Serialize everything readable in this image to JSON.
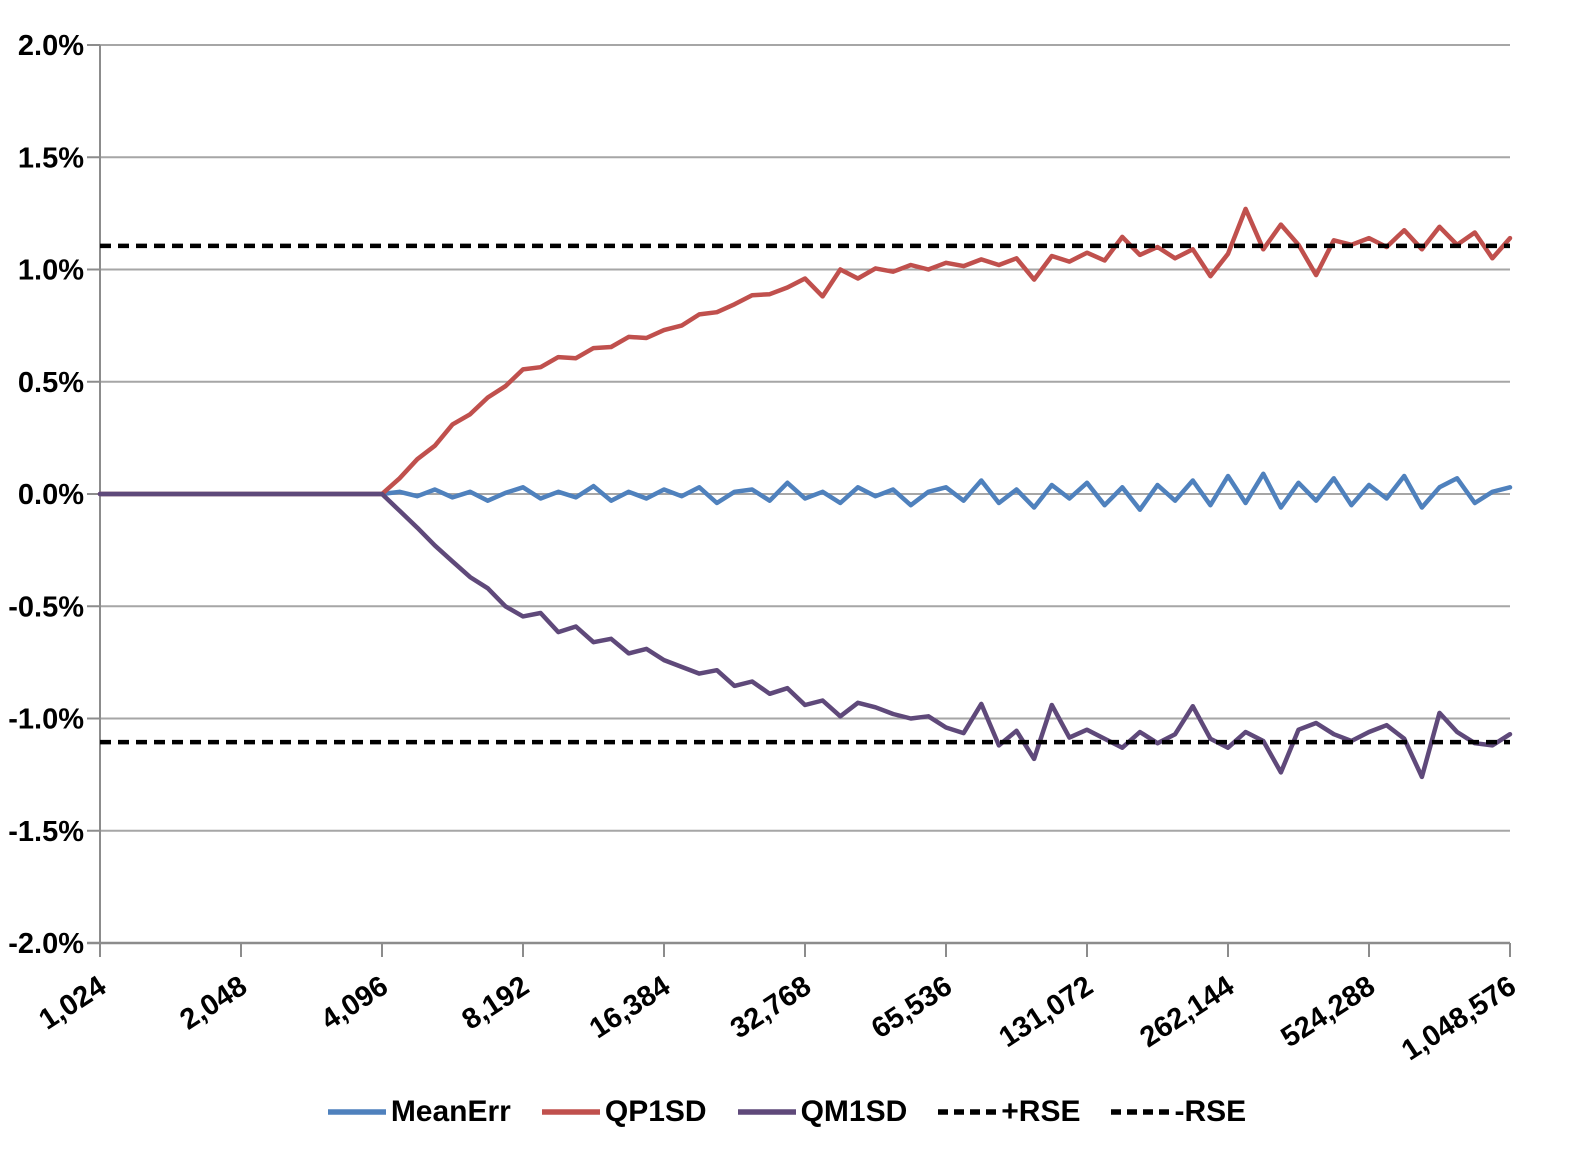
{
  "chart_data": {
    "type": "line",
    "title": "",
    "xlabel": "",
    "ylabel": "",
    "grid": "horizontal-only",
    "background": "#ffffff",
    "x_axis": {
      "scale": "log2",
      "min": 1024,
      "max": 1048576,
      "tick_values": [
        1024,
        2048,
        4096,
        8192,
        16384,
        32768,
        65536,
        131072,
        262144,
        524288,
        1048576
      ],
      "tick_labels": [
        "1,024",
        "2,048",
        "4,096",
        "8,192",
        "16,384",
        "32,768",
        "65,536",
        "131,072",
        "262,144",
        "524,288",
        "1,048,576"
      ],
      "label_rotation_deg": -33
    },
    "y_axis": {
      "min": -2.0,
      "max": 2.0,
      "tick_step": 0.5,
      "unit": "%",
      "tick_values": [
        2.0,
        1.5,
        1.0,
        0.5,
        0.0,
        -0.5,
        -1.0,
        -1.5,
        -2.0
      ],
      "tick_labels": [
        "2.0%",
        "1.5%",
        "1.0%",
        "0.5%",
        "0.0%",
        "-0.5%",
        "-1.0%",
        "-1.5%",
        "-2.0%"
      ]
    },
    "x": [
      1024,
      1117,
      1218,
      1328,
      1448,
      1579,
      1722,
      1878,
      2048,
      2233,
      2435,
      2656,
      2896,
      3158,
      3444,
      3756,
      4096,
      4467,
      4871,
      5312,
      5793,
      6317,
      6889,
      7512,
      8192,
      8933,
      9742,
      10624,
      11585,
      12634,
      13777,
      15024,
      16384,
      17867,
      19484,
      21247,
      23170,
      25268,
      27554,
      30048,
      32768,
      35734,
      38968,
      42495,
      46341,
      50535,
      55109,
      60097,
      65536,
      71468,
      77936,
      84990,
      92682,
      101070,
      110218,
      120194,
      131072,
      142935,
      155872,
      169979,
      185364,
      202141,
      220436,
      240387,
      262144,
      285870,
      311744,
      339959,
      370728,
      404281,
      440872,
      480775,
      524288,
      571740,
      623487,
      679917,
      741455,
      808562,
      881744,
      961551,
      1048576
    ],
    "series": [
      {
        "name": "MeanErr",
        "color": "#4F81BD",
        "style": "solid",
        "values": [
          0,
          0,
          0,
          0,
          0,
          0,
          0,
          0,
          0,
          0,
          0,
          0,
          0,
          0,
          0,
          0,
          0,
          0.01,
          -0.01,
          0.02,
          -0.015,
          0.01,
          -0.03,
          0.005,
          0.03,
          -0.02,
          0.01,
          -0.015,
          0.035,
          -0.03,
          0.01,
          -0.02,
          0.02,
          -0.01,
          0.03,
          -0.04,
          0.01,
          0.02,
          -0.03,
          0.05,
          -0.02,
          0.01,
          -0.04,
          0.03,
          -0.01,
          0.02,
          -0.05,
          0.01,
          0.03,
          -0.03,
          0.06,
          -0.04,
          0.02,
          -0.06,
          0.04,
          -0.02,
          0.05,
          -0.05,
          0.03,
          -0.07,
          0.04,
          -0.03,
          0.06,
          -0.05,
          0.08,
          -0.04,
          0.09,
          -0.06,
          0.05,
          -0.03,
          0.07,
          -0.05,
          0.04,
          -0.02,
          0.08,
          -0.06,
          0.03,
          0.07,
          -0.04,
          0.01,
          0.03
        ]
      },
      {
        "name": "QP1SD",
        "color": "#C0504D",
        "style": "solid",
        "values": [
          0,
          0,
          0,
          0,
          0,
          0,
          0,
          0,
          0,
          0,
          0,
          0,
          0,
          0,
          0,
          0,
          0,
          0.07,
          0.155,
          0.215,
          0.31,
          0.355,
          0.43,
          0.48,
          0.555,
          0.565,
          0.61,
          0.605,
          0.65,
          0.655,
          0.7,
          0.695,
          0.73,
          0.75,
          0.8,
          0.81,
          0.845,
          0.885,
          0.89,
          0.92,
          0.96,
          0.88,
          1.0,
          0.96,
          1.005,
          0.99,
          1.02,
          1.0,
          1.03,
          1.015,
          1.045,
          1.02,
          1.05,
          0.955,
          1.06,
          1.035,
          1.075,
          1.04,
          1.145,
          1.065,
          1.1,
          1.05,
          1.09,
          0.97,
          1.07,
          1.27,
          1.09,
          1.2,
          1.11,
          0.975,
          1.13,
          1.11,
          1.14,
          1.1,
          1.175,
          1.09,
          1.19,
          1.11,
          1.165,
          1.05,
          1.14
        ]
      },
      {
        "name": "QM1SD",
        "color": "#5F497A",
        "style": "solid",
        "values": [
          0,
          0,
          0,
          0,
          0,
          0,
          0,
          0,
          0,
          0,
          0,
          0,
          0,
          0,
          0,
          0,
          0,
          -0.075,
          -0.15,
          -0.23,
          -0.3,
          -0.37,
          -0.42,
          -0.5,
          -0.545,
          -0.53,
          -0.615,
          -0.59,
          -0.66,
          -0.645,
          -0.71,
          -0.69,
          -0.74,
          -0.77,
          -0.8,
          -0.785,
          -0.855,
          -0.835,
          -0.89,
          -0.865,
          -0.94,
          -0.92,
          -0.99,
          -0.93,
          -0.95,
          -0.98,
          -1.0,
          -0.99,
          -1.04,
          -1.065,
          -0.935,
          -1.12,
          -1.055,
          -1.18,
          -0.94,
          -1.085,
          -1.05,
          -1.09,
          -1.13,
          -1.06,
          -1.11,
          -1.07,
          -0.945,
          -1.09,
          -1.13,
          -1.06,
          -1.1,
          -1.24,
          -1.05,
          -1.02,
          -1.07,
          -1.1,
          -1.06,
          -1.03,
          -1.09,
          -1.26,
          -0.975,
          -1.06,
          -1.11,
          -1.12,
          -1.07
        ]
      },
      {
        "name": "+RSE",
        "color": "#000000",
        "style": "dashed",
        "constant": 1.105
      },
      {
        "name": "-RSE",
        "color": "#000000",
        "style": "dashed",
        "constant": -1.105
      }
    ],
    "legend": {
      "position": "bottom",
      "entries": [
        "MeanErr",
        "QP1SD",
        "QM1SD",
        "+RSE",
        "-RSE"
      ]
    }
  },
  "colors": {
    "grid": "#A6A6A6",
    "axis": "#8C8C8C",
    "label": "#000000",
    "background": "#FFFFFF"
  }
}
